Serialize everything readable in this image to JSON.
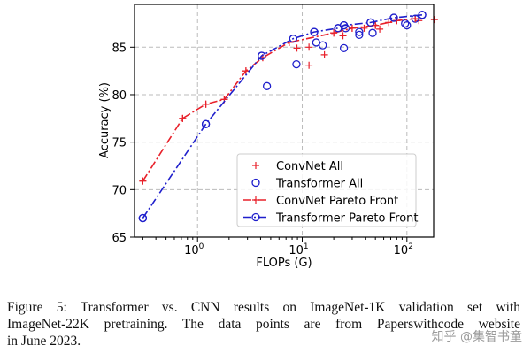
{
  "chart_data": {
    "type": "scatter",
    "xlabel": "FLOPs (G)",
    "ylabel": "Accuracy (%)",
    "xscale": "log",
    "xlim": [
      0.25,
      180
    ],
    "ylim": [
      65,
      89.5
    ],
    "xticks": [
      {
        "value": 1,
        "label": "10^0"
      },
      {
        "value": 10,
        "label": "10^1"
      },
      {
        "value": 100,
        "label": "10^2"
      }
    ],
    "yticks": [
      65,
      70,
      75,
      80,
      85
    ],
    "grid": true,
    "legend_position": "center-right",
    "series": [
      {
        "name": "ConvNet All",
        "kind": "scatter",
        "marker": "+",
        "color": "#e8202a",
        "points": [
          [
            0.3,
            70.9
          ],
          [
            0.72,
            77.5
          ],
          [
            1.2,
            79.0
          ],
          [
            1.8,
            79.5
          ],
          [
            2.9,
            82.5
          ],
          [
            4.2,
            83.9
          ],
          [
            7.5,
            85.5
          ],
          [
            8.9,
            84.9
          ],
          [
            11.6,
            85.0
          ],
          [
            11.6,
            83.1
          ],
          [
            16.3,
            84.2
          ],
          [
            20,
            86.5
          ],
          [
            24.5,
            86.2
          ],
          [
            30,
            87.0
          ],
          [
            39,
            87.0
          ],
          [
            50,
            87.3
          ],
          [
            55,
            86.9
          ],
          [
            67,
            87.6
          ],
          [
            80,
            87.8
          ],
          [
            120,
            88.0
          ],
          [
            130,
            87.8
          ],
          [
            183,
            87.9
          ]
        ]
      },
      {
        "name": "Transformer All",
        "kind": "scatter",
        "marker": "o",
        "color": "#1f1fcc",
        "points": [
          [
            0.3,
            67.0
          ],
          [
            1.2,
            76.9
          ],
          [
            4.1,
            84.1
          ],
          [
            4.6,
            80.9
          ],
          [
            8.2,
            85.9
          ],
          [
            8.8,
            83.2
          ],
          [
            13,
            86.6
          ],
          [
            13.6,
            85.5
          ],
          [
            15.7,
            85.2
          ],
          [
            22,
            87.0
          ],
          [
            25,
            87.3
          ],
          [
            25,
            84.9
          ],
          [
            26,
            87.0
          ],
          [
            35,
            86.6
          ],
          [
            35,
            86.3
          ],
          [
            45,
            87.6
          ],
          [
            47,
            86.5
          ],
          [
            75,
            88.1
          ],
          [
            96,
            87.5
          ],
          [
            100,
            87.3
          ],
          [
            120,
            88.0
          ],
          [
            140,
            88.4
          ]
        ]
      },
      {
        "name": "ConvNet Pareto Front",
        "kind": "line",
        "marker": "+",
        "color": "#e8202a",
        "points": [
          [
            0.3,
            70.9
          ],
          [
            0.72,
            77.5
          ],
          [
            1.2,
            79.0
          ],
          [
            1.8,
            79.5
          ],
          [
            2.9,
            82.5
          ],
          [
            4.2,
            83.9
          ],
          [
            7.5,
            85.5
          ],
          [
            20,
            86.5
          ],
          [
            30,
            87.0
          ],
          [
            50,
            87.3
          ],
          [
            80,
            87.8
          ],
          [
            120,
            88.0
          ]
        ]
      },
      {
        "name": "Transformer Pareto Front",
        "kind": "line",
        "marker": "o",
        "color": "#1f1fcc",
        "points": [
          [
            0.3,
            67.0
          ],
          [
            1.2,
            76.9
          ],
          [
            4.1,
            84.1
          ],
          [
            8.2,
            85.9
          ],
          [
            13,
            86.6
          ],
          [
            22,
            87.0
          ],
          [
            25,
            87.3
          ],
          [
            45,
            87.6
          ],
          [
            75,
            88.1
          ],
          [
            140,
            88.4
          ]
        ]
      }
    ]
  },
  "caption": {
    "lines": [
      "Figure 5: Transformer vs.  CNN results on ImageNet-1K validation set with",
      "ImageNet-22K pretraining. The data points are from Paperswithcode website",
      "in June 2023."
    ]
  },
  "watermark": "知乎 @集智书童"
}
